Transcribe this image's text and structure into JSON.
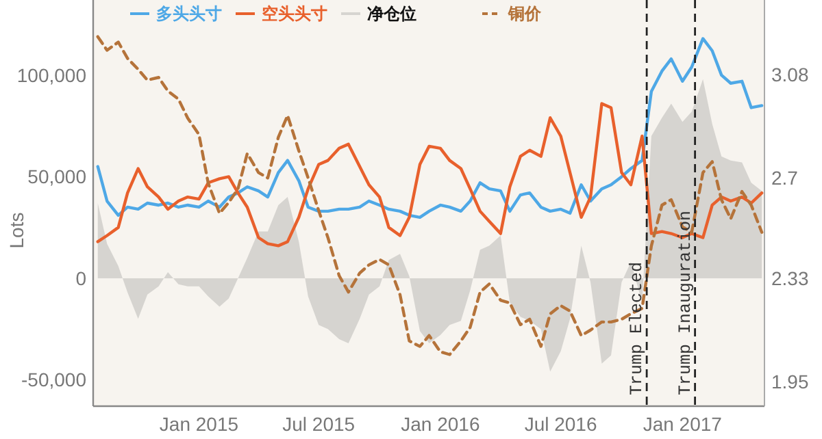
{
  "chart_data": {
    "type": "line",
    "ylabel": "Lots",
    "legend": "top",
    "x": [
      "2014-08-01",
      "2014-08-15",
      "2014-09-01",
      "2014-09-15",
      "2014-10-01",
      "2014-10-15",
      "2014-11-01",
      "2014-11-15",
      "2014-12-01",
      "2014-12-15",
      "2015-01-01",
      "2015-01-15",
      "2015-02-01",
      "2015-02-15",
      "2015-03-01",
      "2015-03-15",
      "2015-04-01",
      "2015-04-15",
      "2015-05-01",
      "2015-05-15",
      "2015-06-01",
      "2015-06-15",
      "2015-07-01",
      "2015-07-15",
      "2015-08-01",
      "2015-08-15",
      "2015-09-01",
      "2015-09-15",
      "2015-10-01",
      "2015-10-15",
      "2015-11-01",
      "2015-11-15",
      "2015-12-01",
      "2015-12-15",
      "2016-01-01",
      "2016-01-15",
      "2016-02-01",
      "2016-02-15",
      "2016-03-01",
      "2016-03-15",
      "2016-04-01",
      "2016-04-15",
      "2016-05-01",
      "2016-05-15",
      "2016-06-01",
      "2016-06-15",
      "2016-07-01",
      "2016-07-15",
      "2016-08-01",
      "2016-08-15",
      "2016-09-01",
      "2016-09-15",
      "2016-10-01",
      "2016-10-15",
      "2016-11-01",
      "2016-11-15",
      "2016-12-01",
      "2016-12-15",
      "2017-01-01",
      "2017-01-15",
      "2017-02-01",
      "2017-02-15",
      "2017-03-01",
      "2017-03-15",
      "2017-04-01",
      "2017-04-15",
      "2017-05-01"
    ],
    "xlim": [
      "2014-07-25",
      "2017-05-05"
    ],
    "xticks": [
      {
        "value": "2015-01-01",
        "label": "Jan 2015"
      },
      {
        "value": "2015-07-01",
        "label": "Jul 2015"
      },
      {
        "value": "2016-01-01",
        "label": "Jan 2016"
      },
      {
        "value": "2016-07-01",
        "label": "Jul 2016"
      },
      {
        "value": "2017-01-01",
        "label": "Jan 2017"
      }
    ],
    "ylim": [
      -63000,
      137000
    ],
    "yticks": [
      {
        "value": -50000,
        "label": "-50,000"
      },
      0,
      {
        "value": 50000,
        "label": "50,000"
      },
      {
        "value": 100000,
        "label": "100,000"
      }
    ],
    "y2lim": [
      1.86,
      3.355
    ],
    "y2ticks": [
      1.95,
      2.33,
      2.7,
      3.08
    ],
    "series": [
      {
        "name": "多头头寸",
        "color": "#4ea8e6",
        "values": [
          55000,
          38000,
          31000,
          35000,
          34000,
          37000,
          36000,
          37000,
          35000,
          36000,
          35000,
          38000,
          35000,
          40000,
          42000,
          45000,
          43000,
          40000,
          52000,
          58000,
          48000,
          35000,
          33000,
          33000,
          34000,
          34000,
          35000,
          38000,
          36000,
          34000,
          33000,
          31000,
          30000,
          33000,
          36000,
          35000,
          33000,
          38000,
          47000,
          44000,
          43000,
          33000,
          41000,
          42000,
          35000,
          33000,
          34000,
          32000,
          46000,
          38000,
          44000,
          46000,
          50000,
          54000,
          58000,
          92000,
          102000,
          108000,
          97000,
          104000,
          118000,
          112000,
          100000,
          96000,
          97000,
          84000,
          85000
        ]
      },
      {
        "name": "空头头寸",
        "color": "#e8602c",
        "values": [
          18000,
          21000,
          25000,
          42000,
          54000,
          45000,
          40000,
          34000,
          38000,
          40000,
          39000,
          47000,
          49000,
          50000,
          42000,
          35000,
          20000,
          17000,
          16000,
          18000,
          30000,
          44000,
          56000,
          58000,
          64000,
          66000,
          55000,
          46000,
          40000,
          25000,
          21000,
          30000,
          56000,
          65000,
          64000,
          58000,
          54000,
          44000,
          33000,
          28000,
          22000,
          45000,
          60000,
          63000,
          60000,
          79000,
          70000,
          52000,
          30000,
          40000,
          86000,
          84000,
          52000,
          46000,
          70000,
          22000,
          23000,
          22000,
          20000,
          22000,
          20000,
          36000,
          40000,
          38000,
          40000,
          37000,
          42000
        ]
      },
      {
        "name": "净仓位",
        "type": "area",
        "color": "#d6d4d0",
        "values": [
          37000,
          17000,
          6000,
          -7000,
          -20000,
          -8000,
          -4000,
          3000,
          -3000,
          -4000,
          -4000,
          -9000,
          -14000,
          -10000,
          0,
          10000,
          23000,
          23000,
          36000,
          40000,
          18000,
          -9000,
          -23000,
          -25000,
          -30000,
          -32000,
          -20000,
          -8000,
          -4000,
          9000,
          12000,
          1000,
          -26000,
          -32000,
          -28000,
          -23000,
          -21000,
          -6000,
          14000,
          16000,
          21000,
          -12000,
          -19000,
          -21000,
          -25000,
          -46000,
          -36000,
          -20000,
          16000,
          -2000,
          -42000,
          -38000,
          -2000,
          8000,
          -12000,
          70000,
          79000,
          86000,
          77000,
          82000,
          98000,
          76000,
          60000,
          58000,
          57000,
          47000,
          43000
        ]
      },
      {
        "name": "铜价",
        "axis": "y2",
        "line_style": "dashed",
        "color": "#b5733a",
        "values": [
          3.22,
          3.17,
          3.2,
          3.14,
          3.1,
          3.06,
          3.07,
          3.02,
          2.99,
          2.92,
          2.86,
          2.68,
          2.57,
          2.61,
          2.66,
          2.79,
          2.72,
          2.7,
          2.85,
          2.93,
          2.8,
          2.7,
          2.58,
          2.48,
          2.34,
          2.28,
          2.35,
          2.38,
          2.4,
          2.38,
          2.27,
          2.1,
          2.08,
          2.12,
          2.06,
          2.05,
          2.1,
          2.15,
          2.28,
          2.31,
          2.25,
          2.24,
          2.16,
          2.18,
          2.08,
          2.2,
          2.23,
          2.21,
          2.12,
          2.14,
          2.17,
          2.17,
          2.18,
          2.2,
          2.22,
          2.45,
          2.6,
          2.62,
          2.52,
          2.5,
          2.72,
          2.76,
          2.62,
          2.55,
          2.65,
          2.6,
          2.5
        ]
      }
    ],
    "ref_lines": [
      {
        "axis": "x",
        "value": "2016-11-08",
        "label": "Trump Elected",
        "color": "#222222",
        "line_style": "dashed"
      },
      {
        "axis": "x",
        "value": "2017-01-20",
        "label": "Trump Inauguration",
        "color": "#222222",
        "line_style": "dashed"
      }
    ]
  }
}
